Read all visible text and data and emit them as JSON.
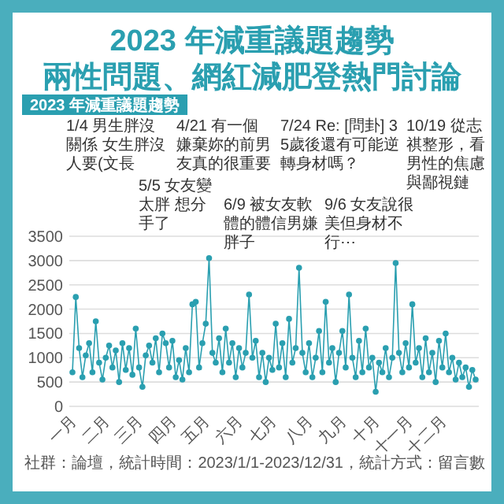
{
  "chart_data": {
    "type": "line",
    "title": "2023 年減重議題趨勢",
    "subtitle": "兩性問題、網紅減肥登熱門討論",
    "categories": [
      "一月",
      null,
      null,
      null,
      null,
      null,
      null,
      null,
      null,
      null,
      "二月",
      null,
      null,
      null,
      null,
      null,
      null,
      null,
      null,
      null,
      "三月",
      null,
      null,
      null,
      null,
      null,
      null,
      null,
      null,
      null,
      "四月",
      null,
      null,
      null,
      null,
      null,
      null,
      null,
      null,
      null,
      "五月",
      null,
      null,
      null,
      null,
      null,
      null,
      null,
      null,
      null,
      "六月",
      null,
      null,
      null,
      null,
      null,
      null,
      null,
      null,
      null,
      "七月",
      null,
      null,
      null,
      null,
      null,
      null,
      null,
      null,
      null,
      null,
      "八月",
      null,
      null,
      null,
      null,
      null,
      null,
      null,
      null,
      null,
      "九月",
      null,
      null,
      null,
      null,
      null,
      null,
      null,
      null,
      null,
      "十月",
      null,
      null,
      null,
      null,
      null,
      null,
      null,
      null,
      null,
      "十一月",
      null,
      null,
      null,
      null,
      null,
      null,
      null,
      null,
      null,
      "十二月",
      null,
      null,
      null,
      null,
      null,
      null,
      null,
      null,
      null,
      null
    ],
    "series": [
      {
        "color": "#2a9fb0",
        "values": [
          700,
          2250,
          1200,
          600,
          1050,
          1300,
          700,
          1750,
          900,
          550,
          1000,
          1250,
          800,
          1150,
          500,
          1300,
          750,
          1200,
          650,
          1600,
          800,
          400,
          1050,
          1250,
          900,
          1400,
          700,
          1500,
          1300,
          800,
          1350,
          600,
          950,
          550,
          1200,
          700,
          2100,
          2150,
          800,
          1300,
          1700,
          3050,
          1100,
          900,
          1400,
          700,
          1600,
          900,
          1300,
          600,
          1200,
          800,
          1100,
          2300,
          1000,
          1350,
          600,
          1100,
          500,
          1000,
          750,
          1700,
          800,
          1300,
          600,
          1800,
          900,
          1200,
          2850,
          1100,
          700,
          1300,
          600,
          1000,
          1550,
          700,
          2150,
          900,
          1200,
          500,
          1100,
          1550,
          800,
          2300,
          1000,
          600,
          1350,
          700,
          1600,
          800,
          1000,
          300,
          900,
          700,
          1200,
          600,
          1000,
          2950,
          1100,
          700,
          1300,
          800,
          2100,
          900,
          1200,
          600,
          1400,
          700,
          1100,
          500,
          1350,
          800,
          1500,
          700,
          1000,
          550,
          900,
          600,
          800,
          400,
          750,
          550
        ]
      }
    ],
    "ylim": [
      0,
      3500
    ],
    "yticks": [
      0,
      500,
      1000,
      1500,
      2000,
      2500,
      3000,
      3500
    ],
    "grid": "y",
    "marker": "circle",
    "annotations": [
      "2023 年減重議題趨勢",
      "1/4 男生胖沒關係 女生胖沒人要(文長",
      "4/21 有一個嫌棄妳的前男友真的很重要",
      "5/5 女友變太胖 想分手了",
      "6/9 被女友軟體的體信男嫌胖子",
      "7/24 Re: [問卦] 35歲後還有可能逆轉身材嗎？",
      "9/6 女友說很美但身材不行⋯",
      "10/19 從志祺整形，看男性的焦慮與鄙視鏈",
      "社群：論壇，統計時間：2023/1/1-2023/12/31，統計方式：留言數"
    ]
  }
}
